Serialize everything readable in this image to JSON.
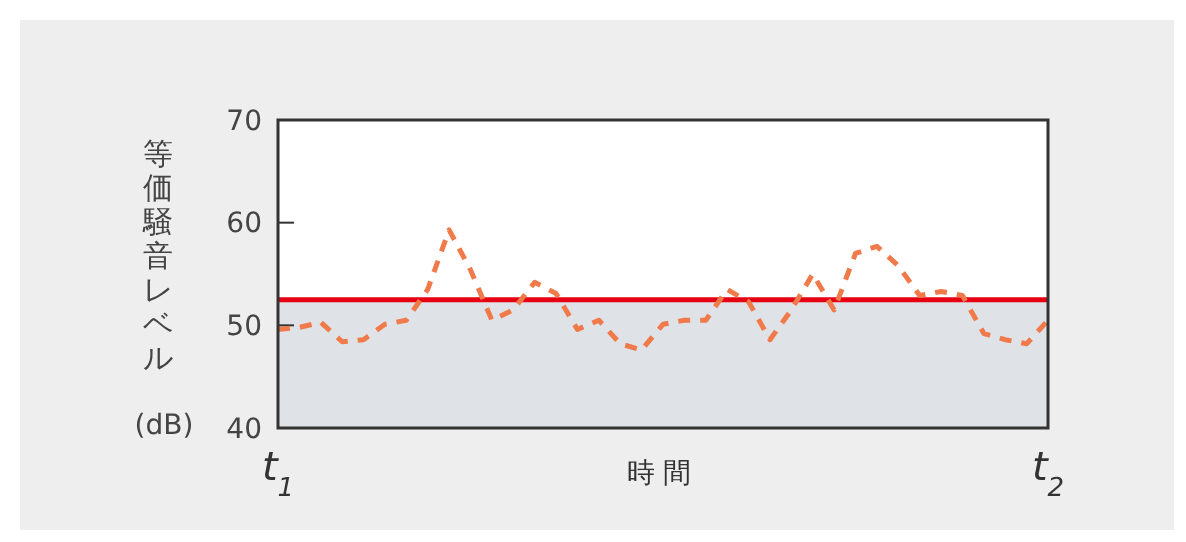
{
  "chart_data": {
    "type": "line",
    "xlabel": "時間",
    "ylabel": "等価騒音レベル (dB)",
    "categories": [
      "t$_{1}$",
      null,
      null,
      null,
      null,
      null,
      null,
      null,
      null,
      null,
      null,
      null,
      null,
      null,
      null,
      null,
      null,
      null,
      null,
      null,
      null,
      null,
      null,
      null,
      null,
      null,
      null,
      null,
      null,
      null,
      null,
      null,
      null,
      null,
      null,
      null,
      "t$_{2}$"
    ],
    "series": [
      {
        "color": "#f07a4a",
        "line_style": "dashed",
        "values": [
          49.6,
          49.8,
          50.3,
          48.4,
          48.6,
          50.1,
          50.5,
          53.5,
          59.3,
          55.4,
          50.5,
          51.5,
          54.2,
          53.1,
          49.6,
          50.5,
          48.2,
          47.6,
          50.1,
          50.5,
          50.5,
          53.5,
          52.3,
          48.6,
          51.5,
          55.0,
          51.5,
          57.0,
          57.7,
          55.8,
          52.9,
          53.3,
          52.9,
          49.2,
          48.6,
          48.2,
          50.5
        ]
      }
    ],
    "ylim": [
      40,
      70
    ],
    "yticks": [
      40,
      50,
      60,
      70
    ],
    "ref_lines": [
      {
        "axis": "y",
        "value": 52.5,
        "color": "#e60012"
      }
    ],
    "bands": [
      {
        "axis": "y",
        "from": 40,
        "to": 52.5,
        "color": "#dfe3e8"
      }
    ],
    "grid": false
  }
}
